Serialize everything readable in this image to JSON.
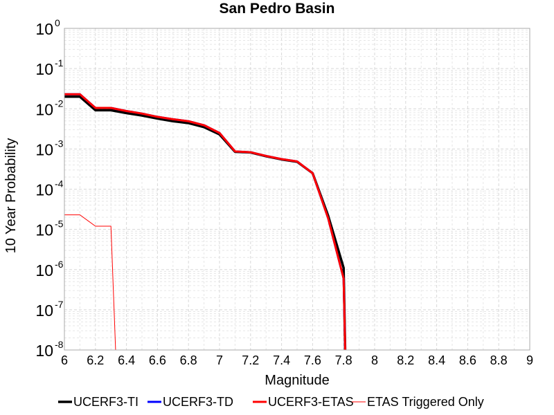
{
  "chart_data": {
    "type": "line",
    "title": "San Pedro Basin",
    "xlabel": "Magnitude",
    "ylabel": "10 Year Probability",
    "xlim": [
      6,
      9
    ],
    "ylim": [
      1e-08,
      1
    ],
    "yscale": "log",
    "grid": true,
    "legend_position": "bottom",
    "xticks": [
      "6",
      "6.2",
      "6.4",
      "6.6",
      "6.8",
      "7",
      "7.2",
      "7.4",
      "7.6",
      "7.8",
      "8",
      "8.2",
      "8.4",
      "8.6",
      "8.8",
      "9"
    ],
    "yticks": [
      {
        "base": "10",
        "exp": "0"
      },
      {
        "base": "10",
        "exp": "-1"
      },
      {
        "base": "10",
        "exp": "-2"
      },
      {
        "base": "10",
        "exp": "-3"
      },
      {
        "base": "10",
        "exp": "-4"
      },
      {
        "base": "10",
        "exp": "-5"
      },
      {
        "base": "10",
        "exp": "-6"
      },
      {
        "base": "10",
        "exp": "-7"
      },
      {
        "base": "10",
        "exp": "-8"
      }
    ],
    "series": [
      {
        "name": "UCERF3-TI",
        "color": "#000000",
        "width": 3.5,
        "x": [
          6.0,
          6.1,
          6.2,
          6.3,
          6.4,
          6.5,
          6.6,
          6.7,
          6.8,
          6.9,
          7.0,
          7.1,
          7.2,
          7.3,
          7.4,
          7.5,
          7.6,
          7.7,
          7.8,
          7.81
        ],
        "y": [
          0.02,
          0.02,
          0.0092,
          0.0092,
          0.0078,
          0.0068,
          0.0057,
          0.0049,
          0.0044,
          0.0035,
          0.0023,
          0.00085,
          0.00082,
          0.00066,
          0.00055,
          0.00048,
          0.00025,
          2.2e-05,
          1.1e-06,
          1e-08
        ]
      },
      {
        "name": "UCERF3-TD",
        "color": "#0000ff",
        "width": 3.0,
        "x": [
          6.0,
          6.1,
          6.2,
          6.3,
          6.4,
          6.5,
          6.6,
          6.7,
          6.8,
          6.9,
          7.0,
          7.1,
          7.2,
          7.3,
          7.4,
          7.5,
          7.6,
          7.7,
          7.8,
          7.81
        ],
        "y": [
          0.023,
          0.023,
          0.0105,
          0.0105,
          0.0088,
          0.0076,
          0.0063,
          0.0055,
          0.0049,
          0.0039,
          0.0025,
          0.00087,
          0.00083,
          0.00067,
          0.00056,
          0.00049,
          0.00025,
          1.9e-05,
          6e-07,
          1e-08
        ]
      },
      {
        "name": "UCERF3-ETAS",
        "color": "#ff0000",
        "width": 3.0,
        "x": [
          6.0,
          6.1,
          6.2,
          6.3,
          6.4,
          6.5,
          6.6,
          6.7,
          6.8,
          6.9,
          7.0,
          7.1,
          7.2,
          7.3,
          7.4,
          7.5,
          7.6,
          7.7,
          7.8,
          7.81
        ],
        "y": [
          0.023,
          0.023,
          0.0105,
          0.0105,
          0.0088,
          0.0076,
          0.0063,
          0.0055,
          0.0049,
          0.0039,
          0.0025,
          0.00087,
          0.00083,
          0.00067,
          0.00056,
          0.00049,
          0.00025,
          1.9e-05,
          6e-07,
          1e-08
        ]
      },
      {
        "name": "ETAS Triggered Only",
        "color": "#ff0000",
        "width": 1.0,
        "x": [
          6.0,
          6.1,
          6.2,
          6.3,
          6.33
        ],
        "y": [
          2.3e-05,
          2.3e-05,
          1.2e-05,
          1.2e-05,
          1e-08
        ]
      }
    ]
  }
}
